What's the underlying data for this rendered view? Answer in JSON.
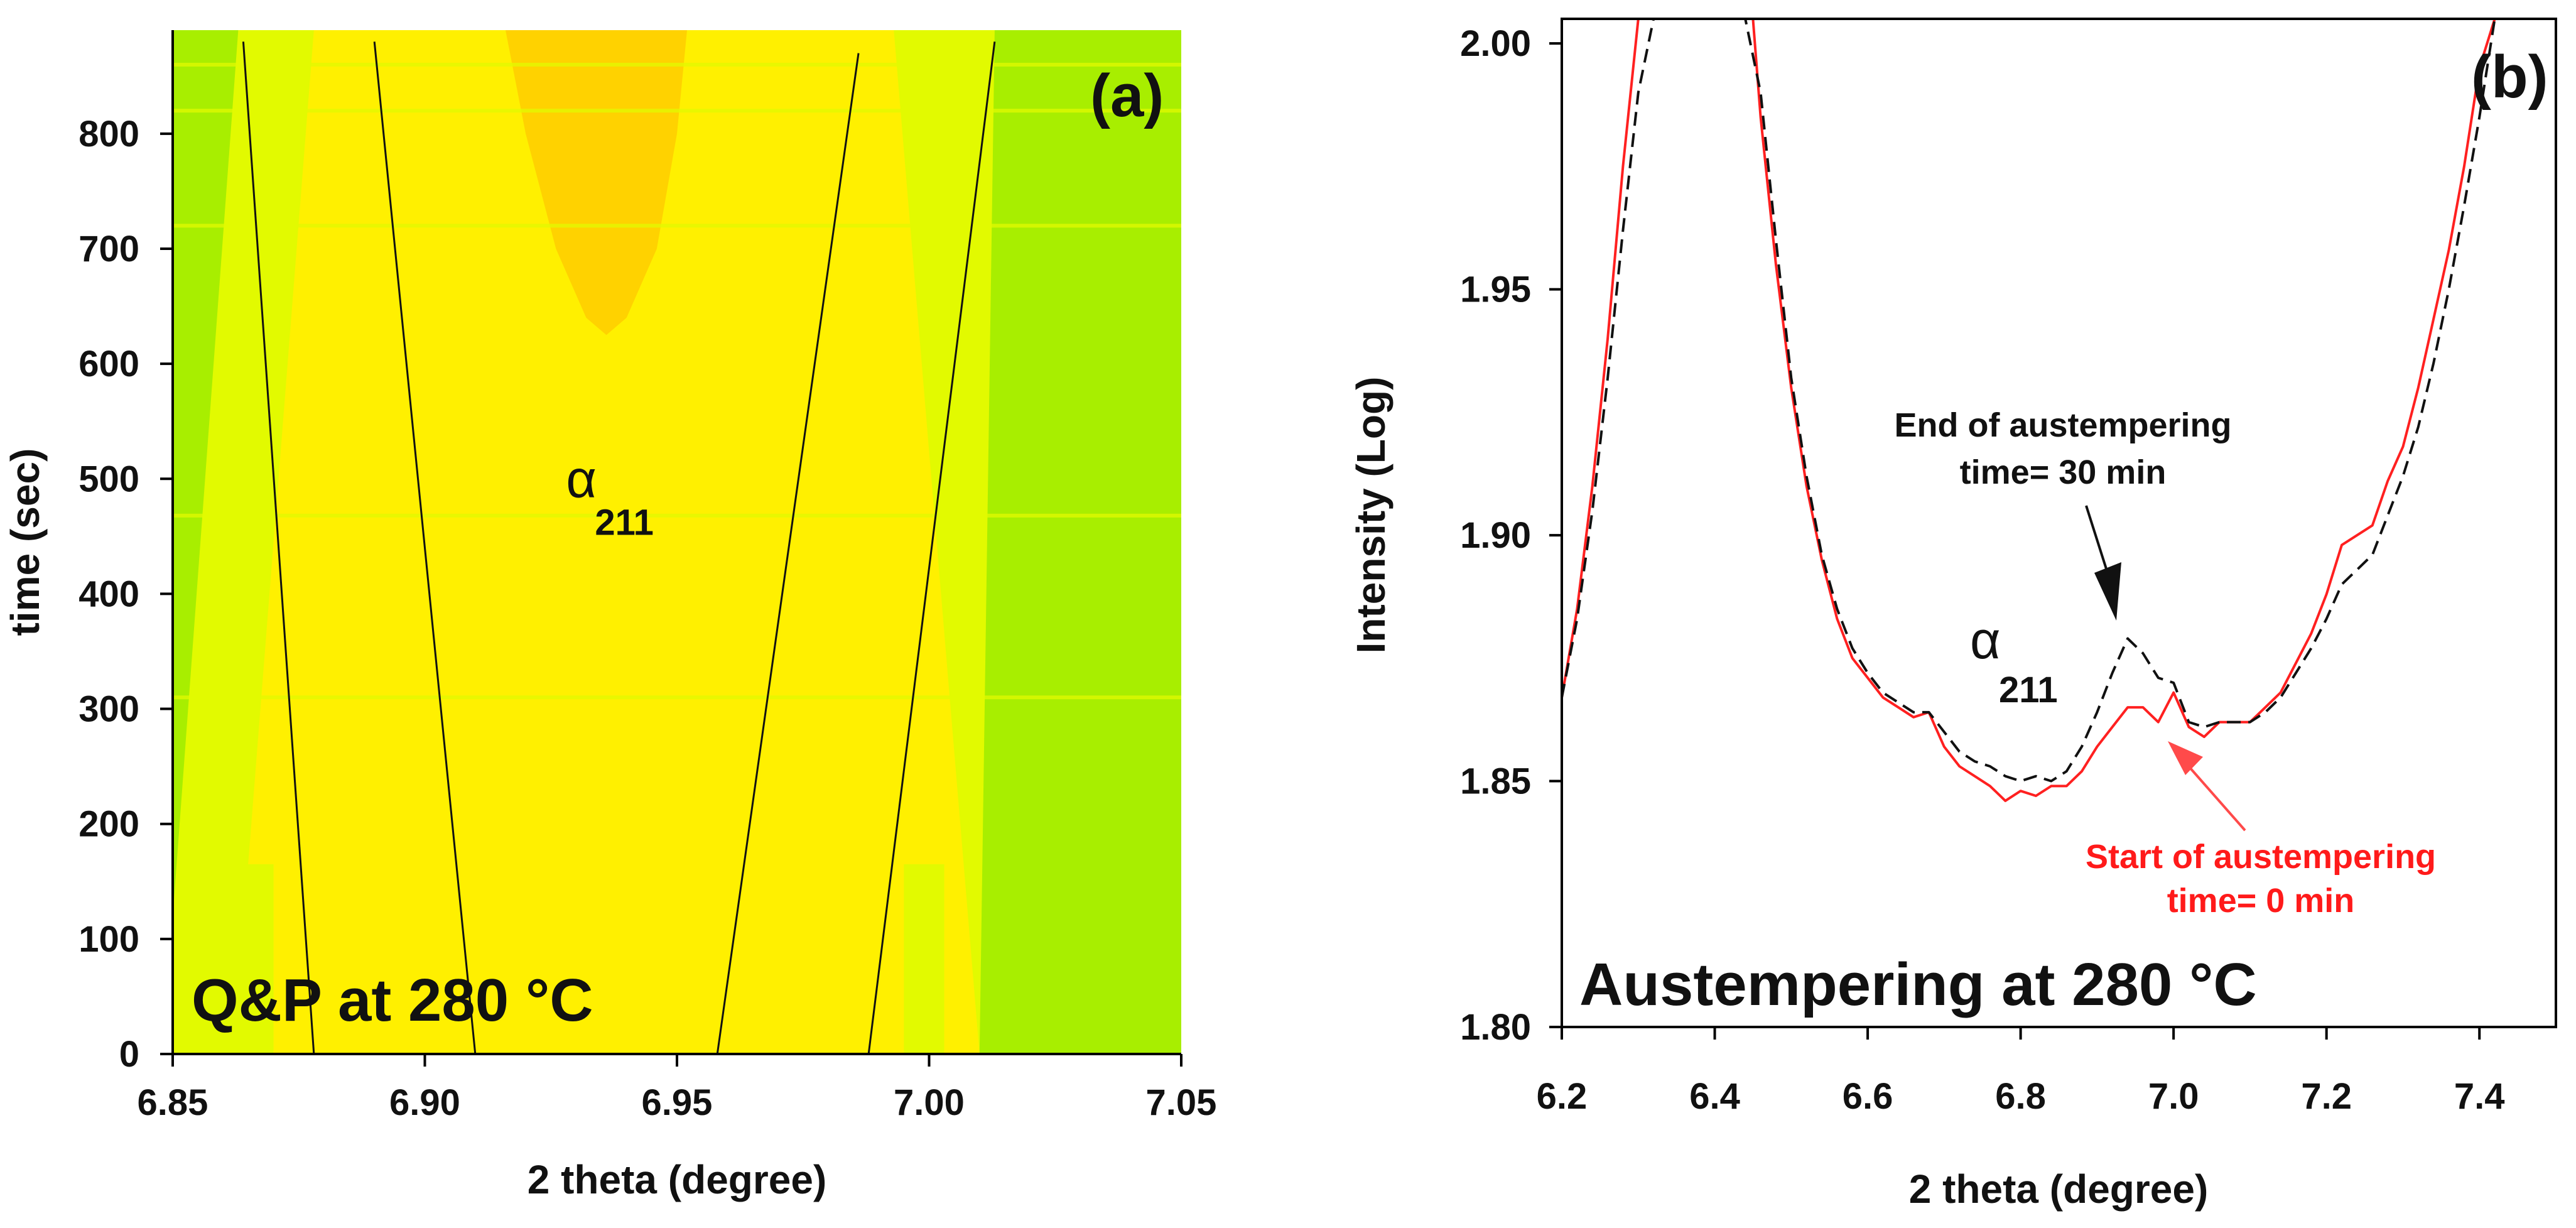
{
  "chart_data": [
    {
      "id": "a",
      "type": "heatmap",
      "panel_label": "(a)",
      "xlabel": "2 theta (degree)",
      "ylabel": "time (sec)",
      "xlim": [
        6.85,
        7.05
      ],
      "ylim": [
        0,
        890
      ],
      "xticks": [
        "6.85",
        "6.90",
        "6.95",
        "7.00",
        "7.05"
      ],
      "yticks": [
        "0",
        "100",
        "200",
        "300",
        "400",
        "500",
        "600",
        "700",
        "800"
      ],
      "annotation": {
        "symbol": "α",
        "subscript": "211",
        "x": 6.928,
        "y": 495
      },
      "inset_label": "Q&P at 280 °C",
      "colors": {
        "background": "#a8ee00",
        "band_outer": "#e2fa00",
        "band_inner": "#fff000",
        "peak_core": "#ffd200"
      },
      "bands": {
        "inner_top": [
          6.878,
          6.993
        ],
        "inner_bottom": [
          6.862,
          7.01
        ],
        "outer_top": [
          6.863,
          7.013
        ],
        "outer_bottom": [
          6.848,
          7.01
        ]
      },
      "peak_core": [
        [
          6.916,
          890
        ],
        [
          6.952,
          890
        ],
        [
          6.95,
          800
        ],
        [
          6.946,
          700
        ],
        [
          6.94,
          640
        ],
        [
          6.936,
          625
        ],
        [
          6.932,
          640
        ],
        [
          6.926,
          700
        ],
        [
          6.92,
          800
        ]
      ],
      "streak_times": [
        860,
        820,
        720,
        468,
        310
      ],
      "fit_lines": [
        {
          "x": [
            6.864,
            6.878
          ],
          "y": [
            880,
            0
          ]
        },
        {
          "x": [
            6.89,
            6.91
          ],
          "y": [
            880,
            0
          ]
        },
        {
          "x": [
            6.986,
            6.958
          ],
          "y": [
            870,
            0
          ]
        },
        {
          "x": [
            7.013,
            6.988
          ],
          "y": [
            880,
            0
          ]
        }
      ]
    },
    {
      "id": "b",
      "type": "line",
      "panel_label": "(b)",
      "xlabel": "2 theta (degree)",
      "ylabel": "Intensity (Log)",
      "xlim": [
        6.2,
        7.5
      ],
      "ylim": [
        1.8,
        2.005
      ],
      "xticks": [
        "6.2",
        "6.4",
        "6.6",
        "6.8",
        "7.0",
        "7.2",
        "7.4"
      ],
      "yticks": [
        "1.80",
        "1.85",
        "1.90",
        "1.95",
        "2.00"
      ],
      "title_inset": "Austempering at 280 °C",
      "peak_annotation": {
        "symbol": "α",
        "subscript": "211"
      },
      "series": [
        {
          "name": "Start of austempering time= 0 min",
          "label_lines": [
            "Start of austempering",
            "time= 0 min"
          ],
          "color": "#ff2020",
          "dash": "solid",
          "x": [
            6.2,
            6.22,
            6.24,
            6.26,
            6.28,
            6.3,
            6.31,
            6.45,
            6.46,
            6.48,
            6.5,
            6.52,
            6.54,
            6.56,
            6.58,
            6.6,
            6.62,
            6.64,
            6.66,
            6.68,
            6.7,
            6.72,
            6.74,
            6.76,
            6.78,
            6.8,
            6.82,
            6.84,
            6.86,
            6.88,
            6.9,
            6.92,
            6.94,
            6.96,
            6.98,
            7.0,
            7.02,
            7.04,
            7.06,
            7.08,
            7.1,
            7.12,
            7.14,
            7.16,
            7.18,
            7.2,
            7.22,
            7.24,
            7.26,
            7.28,
            7.3,
            7.32,
            7.34,
            7.36,
            7.38,
            7.4,
            7.42,
            7.44,
            7.46,
            7.48
          ],
          "y": [
            1.867,
            1.885,
            1.91,
            1.94,
            1.975,
            2.005,
            2.005,
            2.005,
            1.985,
            1.955,
            1.93,
            1.91,
            1.895,
            1.883,
            1.875,
            1.871,
            1.867,
            1.865,
            1.863,
            1.864,
            1.857,
            1.853,
            1.851,
            1.849,
            1.846,
            1.848,
            1.847,
            1.849,
            1.849,
            1.852,
            1.857,
            1.861,
            1.865,
            1.865,
            1.862,
            1.868,
            1.861,
            1.859,
            1.862,
            1.862,
            1.862,
            1.865,
            1.868,
            1.874,
            1.88,
            1.888,
            1.898,
            1.9,
            1.902,
            1.911,
            1.918,
            1.93,
            1.944,
            1.958,
            1.975,
            1.995,
            2.005,
            2.005,
            2.005,
            2.005
          ]
        },
        {
          "name": "End of austempering time= 30 min",
          "label_lines": [
            "End of austempering",
            "time= 30 min"
          ],
          "color": "#111111",
          "dash": "dashed",
          "x": [
            6.2,
            6.22,
            6.24,
            6.26,
            6.28,
            6.3,
            6.32,
            6.33,
            6.44,
            6.46,
            6.48,
            6.5,
            6.52,
            6.54,
            6.56,
            6.58,
            6.6,
            6.62,
            6.64,
            6.66,
            6.68,
            6.7,
            6.72,
            6.74,
            6.76,
            6.78,
            6.8,
            6.82,
            6.84,
            6.86,
            6.88,
            6.9,
            6.92,
            6.94,
            6.96,
            6.98,
            7.0,
            7.02,
            7.04,
            7.06,
            7.08,
            7.1,
            7.12,
            7.14,
            7.16,
            7.18,
            7.2,
            7.22,
            7.24,
            7.26,
            7.28,
            7.3,
            7.32,
            7.34,
            7.36,
            7.38,
            7.4,
            7.42,
            7.44,
            7.46
          ],
          "y": [
            1.867,
            1.883,
            1.905,
            1.932,
            1.962,
            1.99,
            2.005,
            2.005,
            2.005,
            1.99,
            1.96,
            1.932,
            1.912,
            1.896,
            1.885,
            1.877,
            1.872,
            1.868,
            1.866,
            1.864,
            1.864,
            1.86,
            1.856,
            1.854,
            1.853,
            1.851,
            1.85,
            1.851,
            1.85,
            1.852,
            1.857,
            1.864,
            1.872,
            1.879,
            1.876,
            1.871,
            1.87,
            1.862,
            1.861,
            1.862,
            1.862,
            1.862,
            1.864,
            1.867,
            1.872,
            1.877,
            1.883,
            1.89,
            1.893,
            1.896,
            1.904,
            1.912,
            1.922,
            1.935,
            1.95,
            1.967,
            1.985,
            2.005,
            2.005,
            2.005
          ]
        }
      ]
    }
  ]
}
